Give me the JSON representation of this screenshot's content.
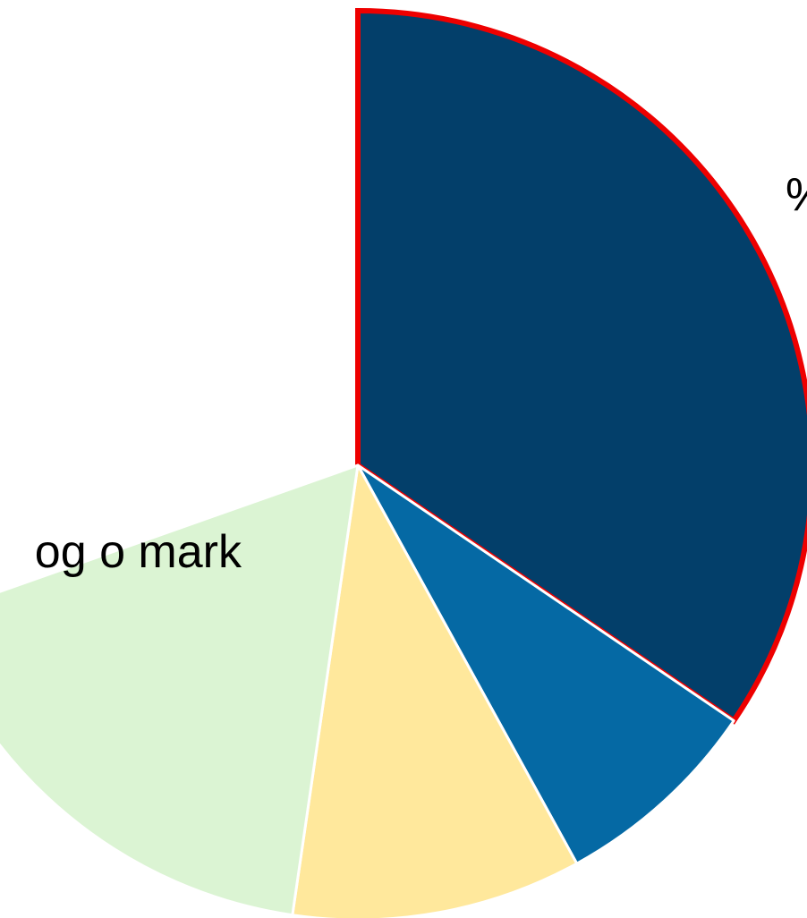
{
  "chart_data": {
    "type": "pie",
    "start_angle_deg": 0,
    "direction": "clockwise",
    "slices": [
      {
        "value": 34.5,
        "color": "#033F6A",
        "highlighted": true,
        "highlight_color": "#EE0000"
      },
      {
        "value": 7.5,
        "color": "#0569A4",
        "highlighted": false
      },
      {
        "value": 10.3,
        "color": "#FFE89C",
        "highlighted": false
      },
      {
        "value": 17.3,
        "color": "#DBF4D3",
        "highlighted": false
      }
    ],
    "labels": [
      {
        "text": "%"
      },
      {
        "text": "og o mark"
      }
    ]
  }
}
